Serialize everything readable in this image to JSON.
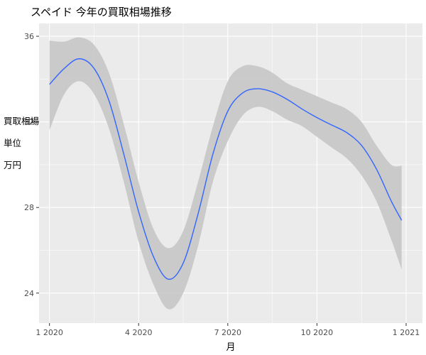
{
  "chart_data": {
    "type": "line",
    "title": "スペイド 今年の買取相場推移",
    "xlabel": "月",
    "ylabel": "買取相場\n\n単位\n\n万円",
    "x_ticks": [
      "1 2020",
      "4 2020",
      "7 2020",
      "10 2020",
      "1 2021"
    ],
    "x_tick_values": [
      0,
      3,
      6,
      9,
      12
    ],
    "y_ticks": [
      24,
      28,
      32,
      36
    ],
    "xlim": [
      -0.35,
      12.55
    ],
    "ylim": [
      22.6,
      36.6
    ],
    "grid": true,
    "smoothed_series": {
      "name": "",
      "color": "#3366ff",
      "x": [
        0.0,
        0.5,
        1.0,
        1.5,
        2.0,
        2.5,
        3.0,
        3.5,
        4.0,
        4.5,
        5.0,
        5.5,
        6.0,
        6.5,
        7.0,
        7.5,
        8.0,
        8.5,
        9.0,
        9.5,
        10.0,
        10.5,
        11.0,
        11.5,
        11.85
      ],
      "y": [
        33.75,
        34.5,
        34.95,
        34.5,
        33.0,
        30.5,
        27.8,
        25.7,
        24.65,
        25.4,
        27.7,
        30.5,
        32.5,
        33.35,
        33.55,
        33.4,
        33.05,
        32.6,
        32.2,
        31.85,
        31.5,
        30.9,
        29.8,
        28.3,
        27.4
      ],
      "upper": [
        35.8,
        35.75,
        35.95,
        35.6,
        34.3,
        31.9,
        29.2,
        27.0,
        26.1,
        26.9,
        29.2,
        31.8,
        33.9,
        34.6,
        34.6,
        34.3,
        33.8,
        33.5,
        33.2,
        32.9,
        32.6,
        32.0,
        30.9,
        30.0,
        29.95
      ],
      "lower": [
        31.6,
        33.3,
        33.9,
        33.3,
        31.7,
        29.2,
        26.4,
        24.4,
        23.25,
        24.0,
        26.2,
        29.2,
        31.1,
        32.3,
        32.7,
        32.5,
        32.1,
        31.8,
        31.3,
        30.8,
        30.3,
        29.5,
        28.3,
        26.5,
        25.1
      ]
    },
    "colors": {
      "panel_background": "#ebebeb",
      "grid_major": "#ffffff",
      "ribbon": "#c6c6c6",
      "line": "#3366ff"
    }
  }
}
